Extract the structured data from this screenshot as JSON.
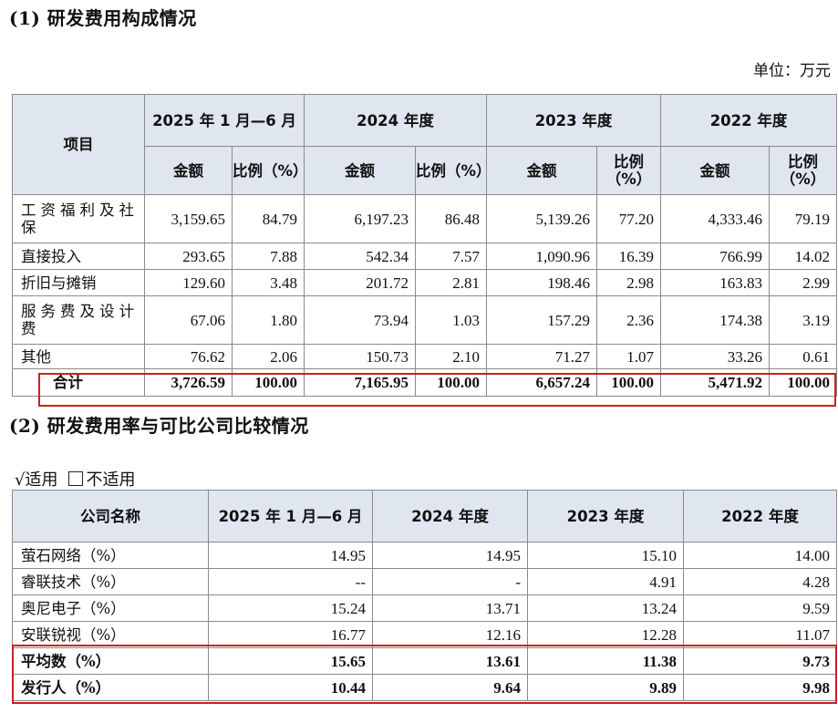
{
  "section1": {
    "heading": "(1) 研发费用构成情况",
    "unit": "单位：万元",
    "item_header": "项目",
    "periods": [
      "2025 年 1 月—6 月",
      "2024 年度",
      "2023 年度",
      "2022 年度"
    ],
    "amount_header": "金额",
    "ratio_header": "比例（%）",
    "rows": [
      {
        "item": "工资福利及社保",
        "values": [
          "3,159.65",
          "84.79",
          "6,197.23",
          "86.48",
          "5,139.26",
          "77.20",
          "4,333.46",
          "79.19"
        ]
      },
      {
        "item": "直接投入",
        "values": [
          "293.65",
          "7.88",
          "542.34",
          "7.57",
          "1,090.96",
          "16.39",
          "766.99",
          "14.02"
        ]
      },
      {
        "item": "折旧与摊销",
        "values": [
          "129.60",
          "3.48",
          "201.72",
          "2.81",
          "198.46",
          "2.98",
          "163.83",
          "2.99"
        ]
      },
      {
        "item": "服务费及设计费",
        "values": [
          "67.06",
          "1.80",
          "73.94",
          "1.03",
          "157.29",
          "2.36",
          "174.38",
          "3.19"
        ]
      },
      {
        "item": "其他",
        "values": [
          "76.62",
          "2.06",
          "150.73",
          "2.10",
          "71.27",
          "1.07",
          "33.26",
          "0.61"
        ]
      }
    ],
    "total": {
      "item": "合计",
      "values": [
        "3,726.59",
        "100.00",
        "7,165.95",
        "100.00",
        "6,657.24",
        "100.00",
        "5,471.92",
        "100.00"
      ]
    }
  },
  "section2": {
    "heading": "(2) 研发费用率与可比公司比较情况",
    "applicable": "√适用",
    "not_applicable": "不适用",
    "company_header": "公司名称",
    "periods": [
      "2025 年 1 月—6 月",
      "2024 年度",
      "2023 年度",
      "2022 年度"
    ],
    "rows": [
      {
        "name": "萤石网络（%）",
        "values": [
          "14.95",
          "14.95",
          "15.10",
          "14.00"
        ]
      },
      {
        "name": "睿联技术（%）",
        "values": [
          "--",
          "-",
          "4.91",
          "4.28"
        ]
      },
      {
        "name": "奥尼电子（%）",
        "values": [
          "15.24",
          "13.71",
          "13.24",
          "9.59"
        ]
      },
      {
        "name": "安联锐视（%）",
        "values": [
          "16.77",
          "12.16",
          "12.28",
          "11.07"
        ]
      },
      {
        "name": "平均数（%）",
        "values": [
          "15.65",
          "13.61",
          "11.38",
          "9.73"
        ]
      },
      {
        "name": "发行人（%）",
        "values": [
          "10.44",
          "9.64",
          "9.89",
          "9.98"
        ]
      }
    ]
  }
}
